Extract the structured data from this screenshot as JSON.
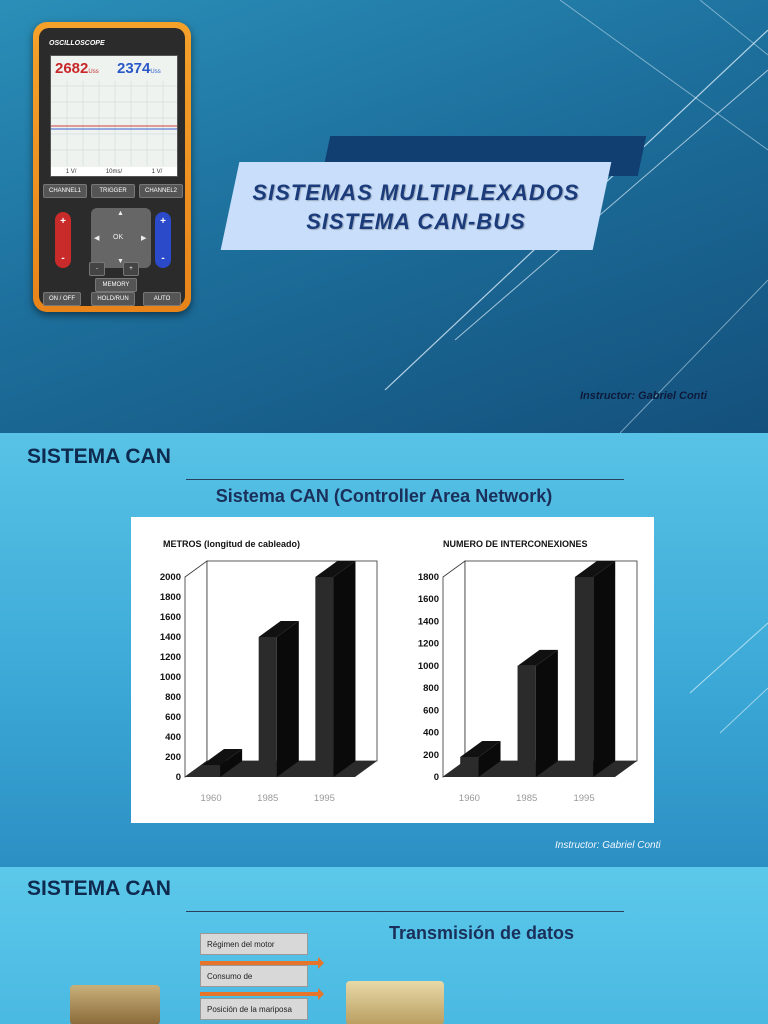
{
  "slide1": {
    "oscilloscope": {
      "brand": "OSCILLOSCOPE",
      "channel1_value": "2682",
      "channel2_value": "2374",
      "unit": "Uss",
      "footer": [
        "1 V/",
        "10ms/",
        "1 V/"
      ],
      "buttons": {
        "channel1": "CHANNEL1",
        "trigger": "TRIGGER",
        "channel2": "CHANNEL2",
        "ok": "OK",
        "memory": "MEMORY",
        "on_off": "ON / OFF",
        "hold_run": "HOLD/RUN",
        "auto": "AUTO"
      }
    },
    "title_line1": "SISTEMAS MULTIPLEXADOS",
    "title_line2": "SISTEMA CAN-BUS",
    "instructor": "Instructor: Gabriel Conti"
  },
  "slide2": {
    "heading": "SISTEMA CAN",
    "subtitle": "Sistema CAN (Controller Area Network)",
    "instructor": "Instructor: Gabriel Conti"
  },
  "slide3": {
    "heading": "SISTEMA CAN",
    "subtitle": "Transmisión de datos",
    "signals": [
      "Régimen del motor",
      "Consumo de",
      "Posición de la mariposa"
    ]
  },
  "chart_data": [
    {
      "type": "bar",
      "title": "METROS (longitud de cableado)",
      "categories": [
        "1960",
        "1985",
        "1995"
      ],
      "values": [
        120,
        1400,
        2000
      ],
      "ylim": [
        0,
        2000
      ],
      "yticks": [
        0,
        200,
        400,
        600,
        800,
        1000,
        1200,
        1400,
        1600,
        1800,
        2000
      ],
      "grid": false,
      "style": "3d",
      "colors": {
        "bar": "#2b2b2b"
      }
    },
    {
      "type": "bar",
      "title": "NUMERO DE INTERCONEXIONES",
      "categories": [
        "1960",
        "1985",
        "1995"
      ],
      "values": [
        180,
        1000,
        1800
      ],
      "ylim": [
        0,
        1800
      ],
      "yticks": [
        0,
        200,
        400,
        600,
        800,
        1000,
        1200,
        1400,
        1600,
        1800
      ],
      "grid": false,
      "style": "3d",
      "colors": {
        "bar": "#2b2b2b"
      }
    }
  ]
}
